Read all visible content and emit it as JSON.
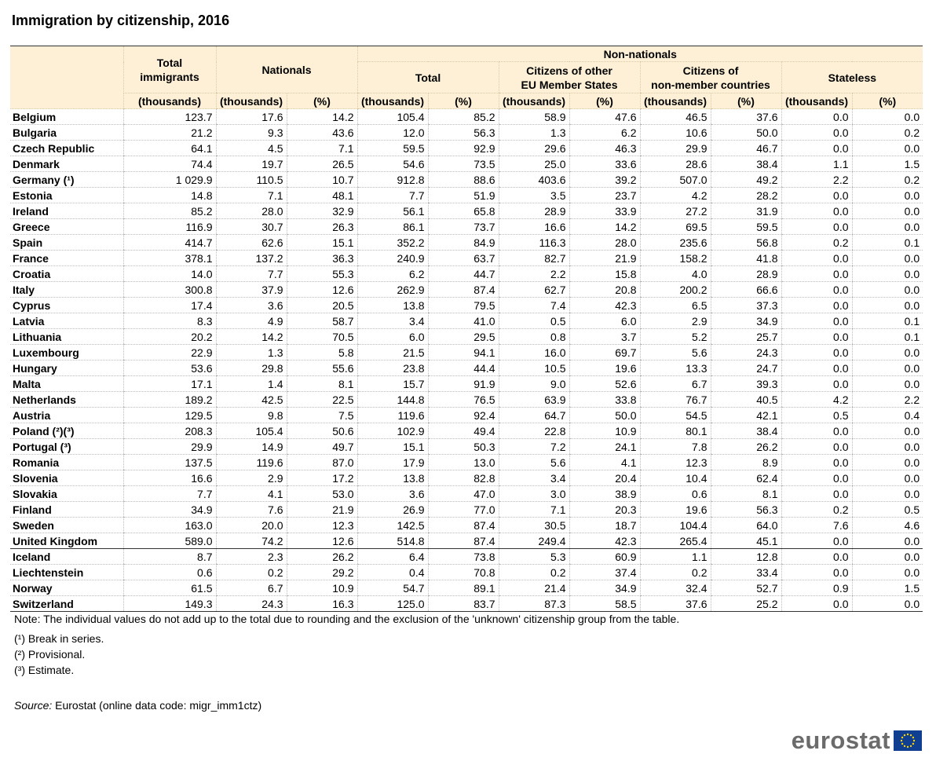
{
  "header": {
    "title": "Immigration by citizenship, 2016"
  },
  "table": {
    "columns": {
      "total_immigrants": "Total\nimmigrants",
      "nationals": "Nationals",
      "non_nationals": "Non-nationals",
      "sub": [
        "Total",
        "Citizens of other\nEU Member States",
        "Citizens of\nnon-member countries",
        "Stateless"
      ],
      "units": [
        "(thousands)",
        "(thousands)",
        "(%)",
        "(thousands)",
        "(%)",
        "(thousands)",
        "(%)",
        "(thousands)",
        "(%)",
        "(thousands)",
        "(%)"
      ]
    },
    "row_groups": [
      [
        [
          "Belgium",
          "123.7",
          "17.6",
          "14.2",
          "105.4",
          "85.2",
          "58.9",
          "47.6",
          "46.5",
          "37.6",
          "0.0",
          "0.0"
        ],
        [
          "Bulgaria",
          "21.2",
          "9.3",
          "43.6",
          "12.0",
          "56.3",
          "1.3",
          "6.2",
          "10.6",
          "50.0",
          "0.0",
          "0.2"
        ],
        [
          "Czech Republic",
          "64.1",
          "4.5",
          "7.1",
          "59.5",
          "92.9",
          "29.6",
          "46.3",
          "29.9",
          "46.7",
          "0.0",
          "0.0"
        ],
        [
          "Denmark",
          "74.4",
          "19.7",
          "26.5",
          "54.6",
          "73.5",
          "25.0",
          "33.6",
          "28.6",
          "38.4",
          "1.1",
          "1.5"
        ],
        [
          "Germany (¹)",
          "1 029.9",
          "110.5",
          "10.7",
          "912.8",
          "88.6",
          "403.6",
          "39.2",
          "507.0",
          "49.2",
          "2.2",
          "0.2"
        ],
        [
          "Estonia",
          "14.8",
          "7.1",
          "48.1",
          "7.7",
          "51.9",
          "3.5",
          "23.7",
          "4.2",
          "28.2",
          "0.0",
          "0.0"
        ],
        [
          "Ireland",
          "85.2",
          "28.0",
          "32.9",
          "56.1",
          "65.8",
          "28.9",
          "33.9",
          "27.2",
          "31.9",
          "0.0",
          "0.0"
        ],
        [
          "Greece",
          "116.9",
          "30.7",
          "26.3",
          "86.1",
          "73.7",
          "16.6",
          "14.2",
          "69.5",
          "59.5",
          "0.0",
          "0.0"
        ],
        [
          "Spain",
          "414.7",
          "62.6",
          "15.1",
          "352.2",
          "84.9",
          "116.3",
          "28.0",
          "235.6",
          "56.8",
          "0.2",
          "0.1"
        ],
        [
          "France",
          "378.1",
          "137.2",
          "36.3",
          "240.9",
          "63.7",
          "82.7",
          "21.9",
          "158.2",
          "41.8",
          "0.0",
          "0.0"
        ],
        [
          "Croatia",
          "14.0",
          "7.7",
          "55.3",
          "6.2",
          "44.7",
          "2.2",
          "15.8",
          "4.0",
          "28.9",
          "0.0",
          "0.0"
        ],
        [
          "Italy",
          "300.8",
          "37.9",
          "12.6",
          "262.9",
          "87.4",
          "62.7",
          "20.8",
          "200.2",
          "66.6",
          "0.0",
          "0.0"
        ],
        [
          "Cyprus",
          "17.4",
          "3.6",
          "20.5",
          "13.8",
          "79.5",
          "7.4",
          "42.3",
          "6.5",
          "37.3",
          "0.0",
          "0.0"
        ],
        [
          "Latvia",
          "8.3",
          "4.9",
          "58.7",
          "3.4",
          "41.0",
          "0.5",
          "6.0",
          "2.9",
          "34.9",
          "0.0",
          "0.1"
        ],
        [
          "Lithuania",
          "20.2",
          "14.2",
          "70.5",
          "6.0",
          "29.5",
          "0.8",
          "3.7",
          "5.2",
          "25.7",
          "0.0",
          "0.1"
        ],
        [
          "Luxembourg",
          "22.9",
          "1.3",
          "5.8",
          "21.5",
          "94.1",
          "16.0",
          "69.7",
          "5.6",
          "24.3",
          "0.0",
          "0.0"
        ],
        [
          "Hungary",
          "53.6",
          "29.8",
          "55.6",
          "23.8",
          "44.4",
          "10.5",
          "19.6",
          "13.3",
          "24.7",
          "0.0",
          "0.0"
        ],
        [
          "Malta",
          "17.1",
          "1.4",
          "8.1",
          "15.7",
          "91.9",
          "9.0",
          "52.6",
          "6.7",
          "39.3",
          "0.0",
          "0.0"
        ],
        [
          "Netherlands",
          "189.2",
          "42.5",
          "22.5",
          "144.8",
          "76.5",
          "63.9",
          "33.8",
          "76.7",
          "40.5",
          "4.2",
          "2.2"
        ],
        [
          "Austria",
          "129.5",
          "9.8",
          "7.5",
          "119.6",
          "92.4",
          "64.7",
          "50.0",
          "54.5",
          "42.1",
          "0.5",
          "0.4"
        ],
        [
          "Poland (²)(³)",
          "208.3",
          "105.4",
          "50.6",
          "102.9",
          "49.4",
          "22.8",
          "10.9",
          "80.1",
          "38.4",
          "0.0",
          "0.0"
        ],
        [
          "Portugal (³)",
          "29.9",
          "14.9",
          "49.7",
          "15.1",
          "50.3",
          "7.2",
          "24.1",
          "7.8",
          "26.2",
          "0.0",
          "0.0"
        ],
        [
          "Romania",
          "137.5",
          "119.6",
          "87.0",
          "17.9",
          "13.0",
          "5.6",
          "4.1",
          "12.3",
          "8.9",
          "0.0",
          "0.0"
        ],
        [
          "Slovenia",
          "16.6",
          "2.9",
          "17.2",
          "13.8",
          "82.8",
          "3.4",
          "20.4",
          "10.4",
          "62.4",
          "0.0",
          "0.0"
        ],
        [
          "Slovakia",
          "7.7",
          "4.1",
          "53.0",
          "3.6",
          "47.0",
          "3.0",
          "38.9",
          "0.6",
          "8.1",
          "0.0",
          "0.0"
        ],
        [
          "Finland",
          "34.9",
          "7.6",
          "21.9",
          "26.9",
          "77.0",
          "7.1",
          "20.3",
          "19.6",
          "56.3",
          "0.2",
          "0.5"
        ],
        [
          "Sweden",
          "163.0",
          "20.0",
          "12.3",
          "142.5",
          "87.4",
          "30.5",
          "18.7",
          "104.4",
          "64.0",
          "7.6",
          "4.6"
        ],
        [
          "United Kingdom",
          "589.0",
          "74.2",
          "12.6",
          "514.8",
          "87.4",
          "249.4",
          "42.3",
          "265.4",
          "45.1",
          "0.0",
          "0.0"
        ]
      ],
      [
        [
          "Iceland",
          "8.7",
          "2.3",
          "26.2",
          "6.4",
          "73.8",
          "5.3",
          "60.9",
          "1.1",
          "12.8",
          "0.0",
          "0.0"
        ],
        [
          "Liechtenstein",
          "0.6",
          "0.2",
          "29.2",
          "0.4",
          "70.8",
          "0.2",
          "37.4",
          "0.2",
          "33.4",
          "0.0",
          "0.0"
        ],
        [
          "Norway",
          "61.5",
          "6.7",
          "10.9",
          "54.7",
          "89.1",
          "21.4",
          "34.9",
          "32.4",
          "52.7",
          "0.9",
          "1.5"
        ],
        [
          "Switzerland",
          "149.3",
          "24.3",
          "16.3",
          "125.0",
          "83.7",
          "87.3",
          "58.5",
          "37.6",
          "25.2",
          "0.0",
          "0.0"
        ]
      ]
    ]
  },
  "note": "Note: The individual values do not add up to the total due to rounding and the exclusion of the 'unknown' citizenship group from the table.",
  "footnotes": [
    "(¹) Break in series.",
    "(²) Provisional.",
    "(³) Estimate."
  ],
  "source": {
    "label": "Source:",
    "text": "Eurostat (online data code: migr_imm1ctz)"
  },
  "logo": "eurostat"
}
